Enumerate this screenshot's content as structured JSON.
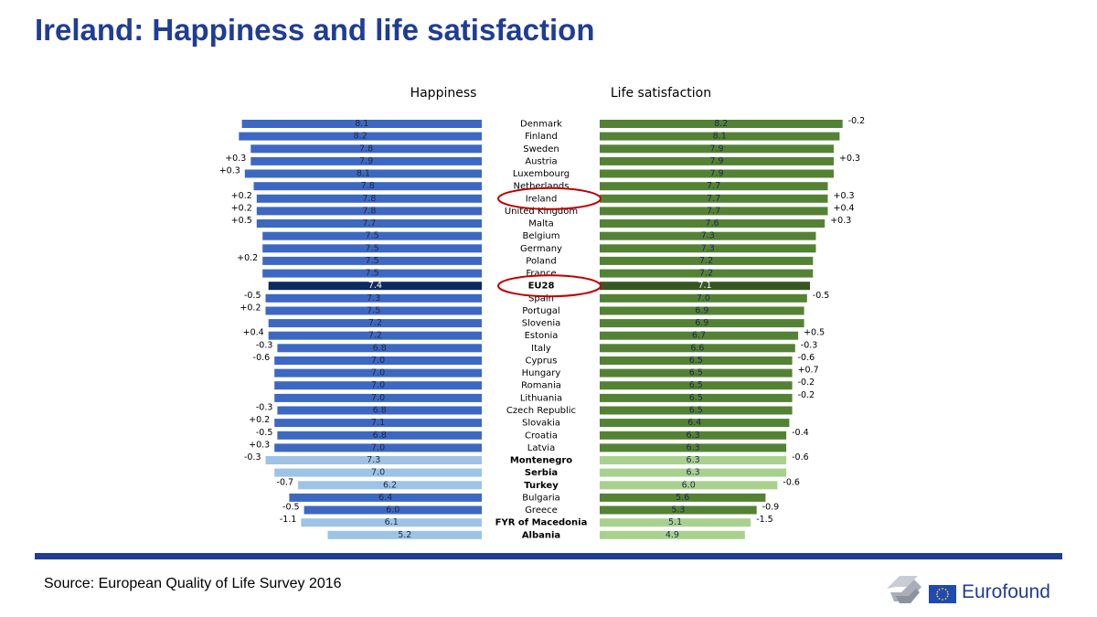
{
  "page": {
    "title": "Ireland: Happiness and life satisfaction",
    "source": "Source: European Quality of Life Survey 2016",
    "logo_text": "Eurofound",
    "colors": {
      "title": "#1f3d94",
      "happiness_eu": "#3d68c2",
      "happiness_candidate": "#9dc3e6",
      "happiness_eu28": "#0d2b5c",
      "satisfaction_eu": "#548235",
      "satisfaction_candidate": "#a9d18e",
      "satisfaction_eu28": "#375623",
      "highlight_circle": "#c00000"
    }
  },
  "chart_data": {
    "type": "bar",
    "layout": "back-to-back horizontal",
    "series": [
      {
        "name": "Happiness",
        "values": [
          8.1,
          8.2,
          7.8,
          7.9,
          8.1,
          7.8,
          7.8,
          7.8,
          7.7,
          7.5,
          7.5,
          7.5,
          7.5,
          7.4,
          7.3,
          7.5,
          7.2,
          7.2,
          6.8,
          7.0,
          7.0,
          7.0,
          7.0,
          6.8,
          7.1,
          6.8,
          7.0,
          7.3,
          7.0,
          6.2,
          6.4,
          6.0,
          6.1,
          5.2
        ],
        "changes": [
          "",
          "",
          "",
          "+0.3",
          "+0.3",
          "",
          "+0.2",
          "+0.2",
          "+0.5",
          "",
          "",
          "+0.2",
          "",
          "",
          "-0.5",
          "+0.2",
          "",
          "+0.4",
          "-0.3",
          "-0.6",
          "",
          "",
          "",
          "-0.3",
          "+0.2",
          "-0.5",
          "+0.3",
          "-0.3",
          "",
          "-0.7",
          "",
          "-0.5",
          "-1.1",
          ""
        ]
      },
      {
        "name": "Life satisfaction",
        "values": [
          8.2,
          8.1,
          7.9,
          7.9,
          7.9,
          7.7,
          7.7,
          7.7,
          7.6,
          7.3,
          7.3,
          7.2,
          7.2,
          7.1,
          7.0,
          6.9,
          6.9,
          6.7,
          6.6,
          6.5,
          6.5,
          6.5,
          6.5,
          6.5,
          6.4,
          6.3,
          6.3,
          6.3,
          6.3,
          6.0,
          5.6,
          5.3,
          5.1,
          4.9
        ],
        "changes": [
          "-0.2",
          "",
          "",
          "+0.3",
          "",
          "",
          "+0.3",
          "+0.4",
          "+0.3",
          "",
          "",
          "",
          "",
          "",
          "-0.5",
          "",
          "",
          "+0.5",
          "-0.3",
          "-0.6",
          "+0.7",
          "-0.2",
          "-0.2",
          "",
          "",
          "-0.4",
          "",
          "-0.6",
          "",
          "-0.6",
          "",
          "-0.9",
          "-1.5",
          ""
        ]
      }
    ],
    "categories": [
      "Denmark",
      "Finland",
      "Sweden",
      "Austria",
      "Luxembourg",
      "Netherlands",
      "Ireland",
      "United Kingdom",
      "Malta",
      "Belgium",
      "Germany",
      "Poland",
      "France",
      "EU28",
      "Spain",
      "Portugal",
      "Slovenia",
      "Estonia",
      "Italy",
      "Cyprus",
      "Hungary",
      "Romania",
      "Lithuania",
      "Czech Republic",
      "Slovakia",
      "Croatia",
      "Latvia",
      "Montenegro",
      "Serbia",
      "Turkey",
      "Bulgaria",
      "Greece",
      "FYR of Macedonia",
      "Albania"
    ],
    "group": [
      "eu",
      "eu",
      "eu",
      "eu",
      "eu",
      "eu",
      "eu",
      "eu",
      "eu",
      "eu",
      "eu",
      "eu",
      "eu",
      "eu28",
      "eu",
      "eu",
      "eu",
      "eu",
      "eu",
      "eu",
      "eu",
      "eu",
      "eu",
      "eu",
      "eu",
      "eu",
      "eu",
      "candidate",
      "candidate",
      "candidate",
      "eu",
      "eu",
      "candidate",
      "candidate"
    ],
    "bold_categories": [
      "EU28",
      "Montenegro",
      "Serbia",
      "Turkey",
      "FYR of Macedonia",
      "Albania"
    ],
    "circled_categories": [
      "Ireland",
      "EU28"
    ],
    "happiness_bar_lengths": [
      8.1,
      8.2,
      7.8,
      7.8,
      8.0,
      7.7,
      7.6,
      7.6,
      7.6,
      7.4,
      7.4,
      7.4,
      7.4,
      7.2,
      7.3,
      7.3,
      7.2,
      7.2,
      6.9,
      7.0,
      7.0,
      7.0,
      7.0,
      6.9,
      7.0,
      6.9,
      7.0,
      7.3,
      7.0,
      6.2,
      6.5,
      6.0,
      6.1,
      5.2
    ],
    "value_max": 8.2,
    "legend": "none",
    "grid": false
  }
}
